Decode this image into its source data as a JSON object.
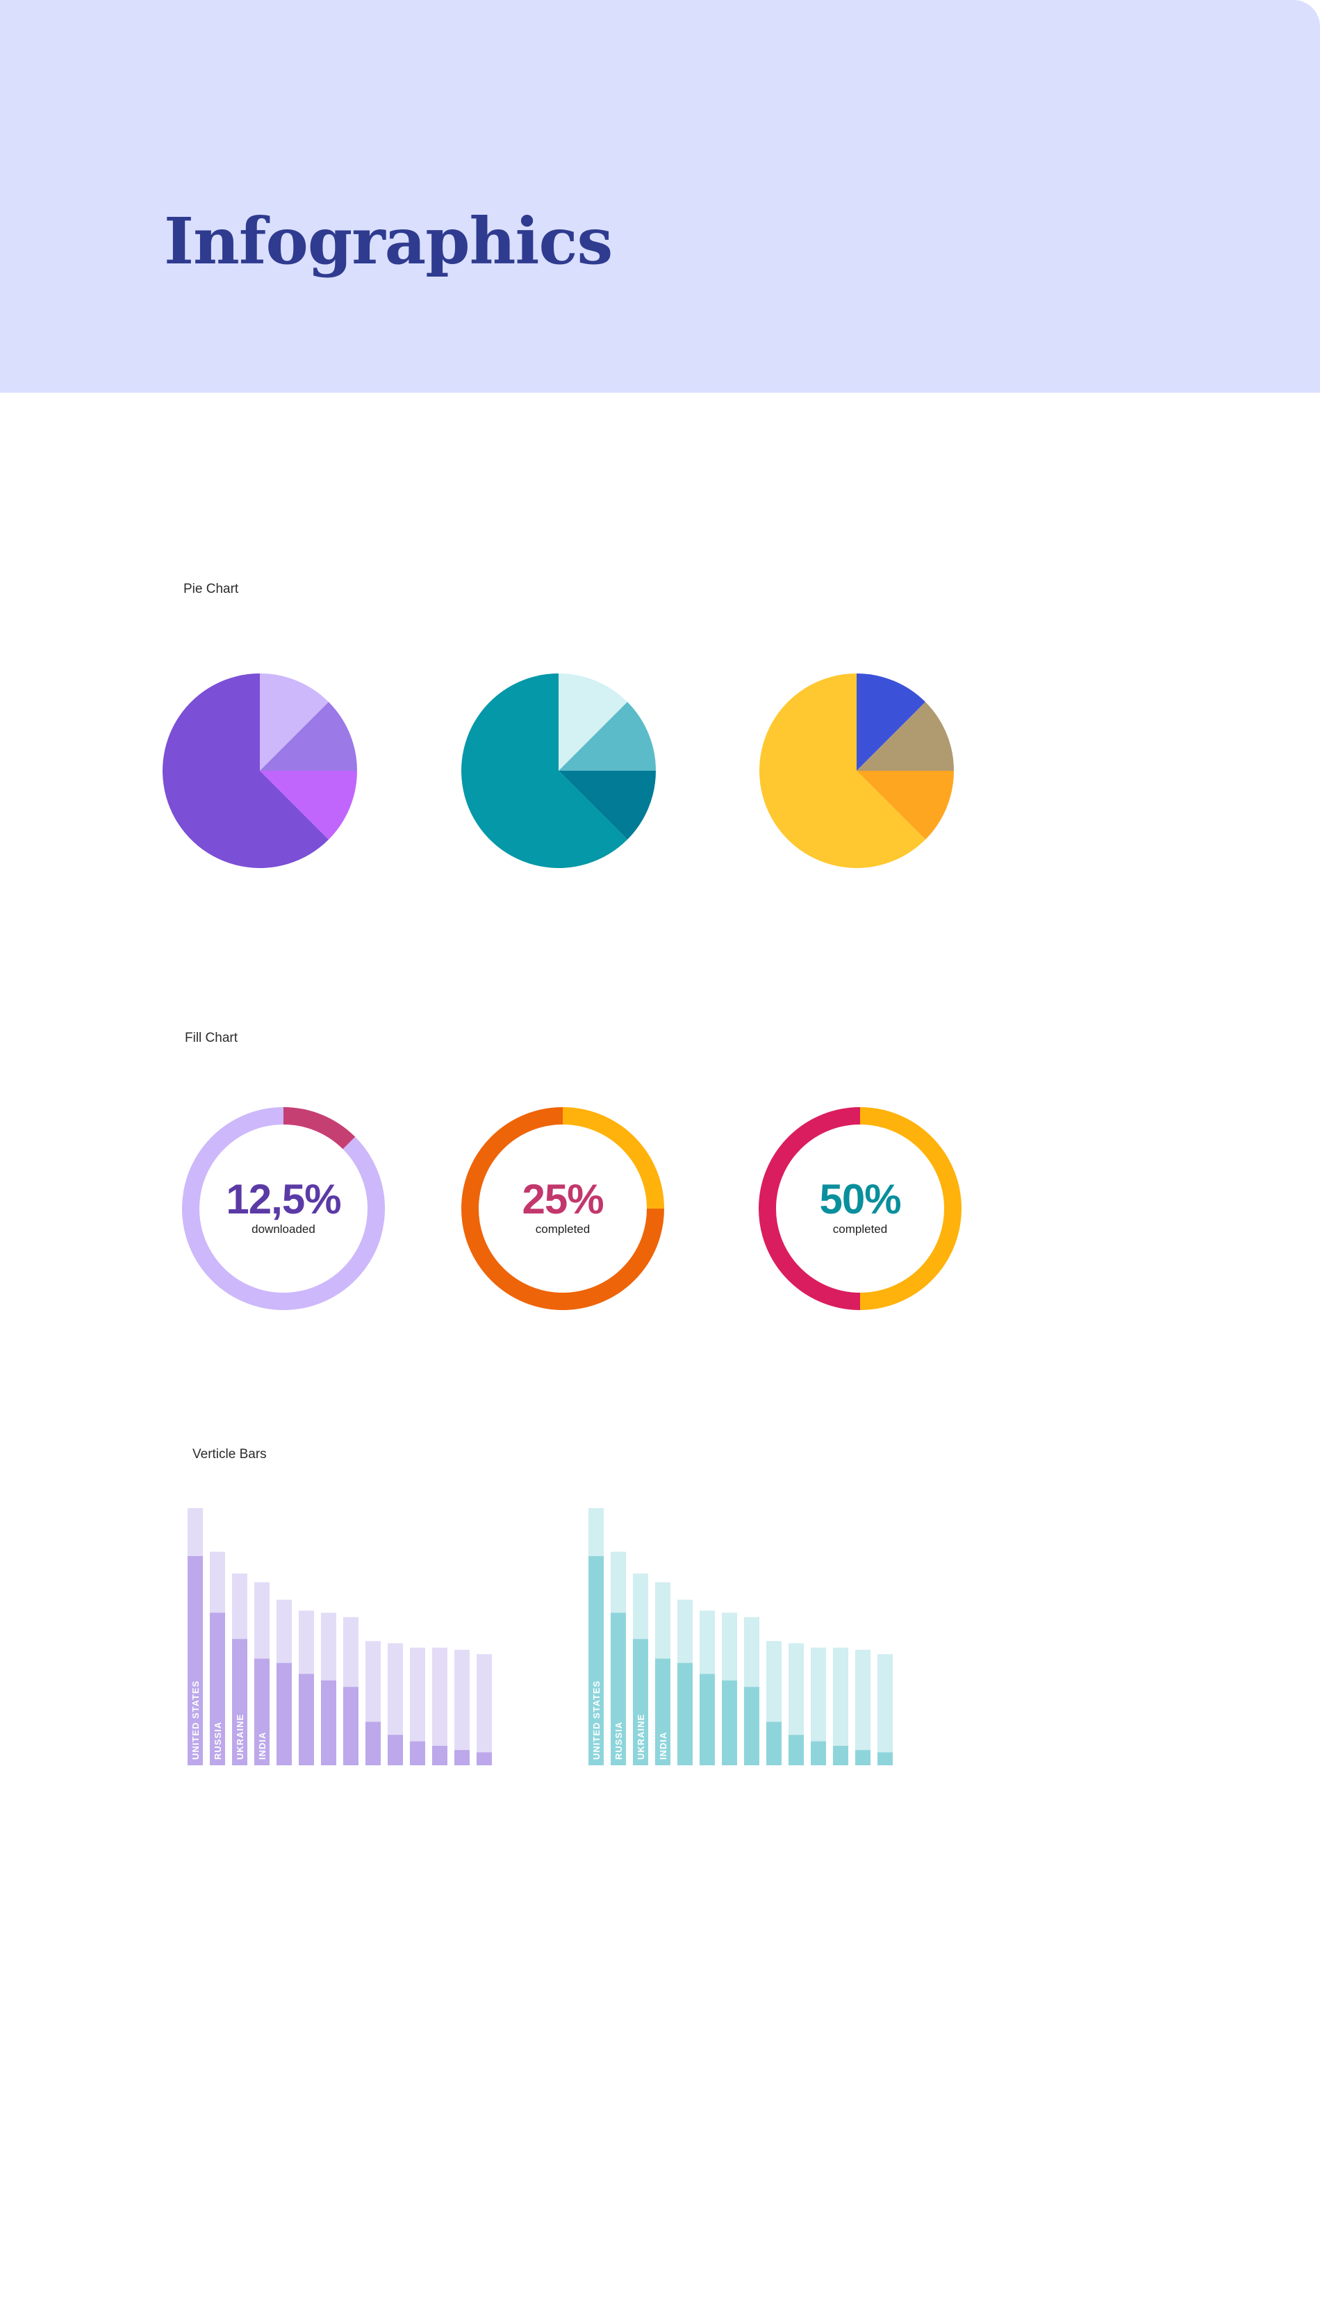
{
  "page": {
    "title": "Infographics",
    "colors": {
      "header_bg": "#dadffd",
      "title": "#2f3b8f",
      "label": "#2b2b2b"
    }
  },
  "sections": {
    "pie": "Pie Chart",
    "fill": "Fill Chart",
    "bars": "Verticle Bars"
  },
  "chart_data": [
    {
      "type": "pie",
      "values": [
        12.5,
        12.5,
        12.5,
        62.5
      ],
      "colors": [
        "#cdb8fb",
        "#9b79e6",
        "#c166fc",
        "#7b4fd6"
      ]
    },
    {
      "type": "pie",
      "values": [
        12.5,
        12.5,
        12.5,
        62.5
      ],
      "colors": [
        "#d4f1f4",
        "#5cbbc8",
        "#017b96",
        "#0498a8"
      ]
    },
    {
      "type": "pie",
      "values": [
        12.5,
        12.5,
        12.5,
        62.5
      ],
      "colors": [
        "#3b52d8",
        "#b09a70",
        "#ffa621",
        "#ffc830"
      ]
    },
    {
      "type": "pie",
      "subtype": "donut",
      "values": [
        12.5,
        87.5
      ],
      "value_text": "12,5%",
      "caption": "downloaded",
      "colors": [
        "#c63f73",
        "#cdb8fb"
      ],
      "text_color": "#5b3aa6"
    },
    {
      "type": "pie",
      "subtype": "donut",
      "values": [
        25,
        75
      ],
      "value_text": "25%",
      "caption": "completed",
      "colors": [
        "#ffb20b",
        "#ee6408"
      ],
      "text_color": "#c2376c"
    },
    {
      "type": "pie",
      "subtype": "donut",
      "values": [
        50,
        50
      ],
      "value_text": "50%",
      "caption": "completed",
      "colors": [
        "#ffb20b",
        "#da1d5e"
      ],
      "text_color": "#0a8f9c"
    },
    {
      "type": "bar",
      "stacked": true,
      "categories": [
        "UNITED STATES",
        "RUSSIA",
        "UKRAINE",
        "INDIA",
        "",
        "",
        "",
        "",
        "",
        "",
        "",
        "",
        "",
        ""
      ],
      "series": [
        {
          "values": [
            96,
            70,
            58,
            49,
            47,
            42,
            39,
            36,
            20,
            14,
            11,
            9,
            7,
            6
          ],
          "color": "#bca8ea"
        },
        {
          "values": [
            22,
            28,
            30,
            35,
            29,
            29,
            31,
            32,
            37,
            42,
            43,
            45,
            46,
            45
          ],
          "color": "#e3dcf7"
        }
      ],
      "ylim": [
        0,
        118
      ],
      "label_color": "#ffffff"
    },
    {
      "type": "bar",
      "stacked": true,
      "categories": [
        "UNITED STATES",
        "RUSSIA",
        "UKRAINE",
        "INDIA",
        "",
        "",
        "",
        "",
        "",
        "",
        "",
        "",
        "",
        ""
      ],
      "series": [
        {
          "values": [
            96,
            70,
            58,
            49,
            47,
            42,
            39,
            36,
            20,
            14,
            11,
            9,
            7,
            6
          ],
          "color": "#8ed5db"
        },
        {
          "values": [
            22,
            28,
            30,
            35,
            29,
            29,
            31,
            32,
            37,
            42,
            43,
            45,
            46,
            45
          ],
          "color": "#d1eef1"
        }
      ],
      "ylim": [
        0,
        118
      ],
      "label_color": "#ffffff"
    }
  ]
}
